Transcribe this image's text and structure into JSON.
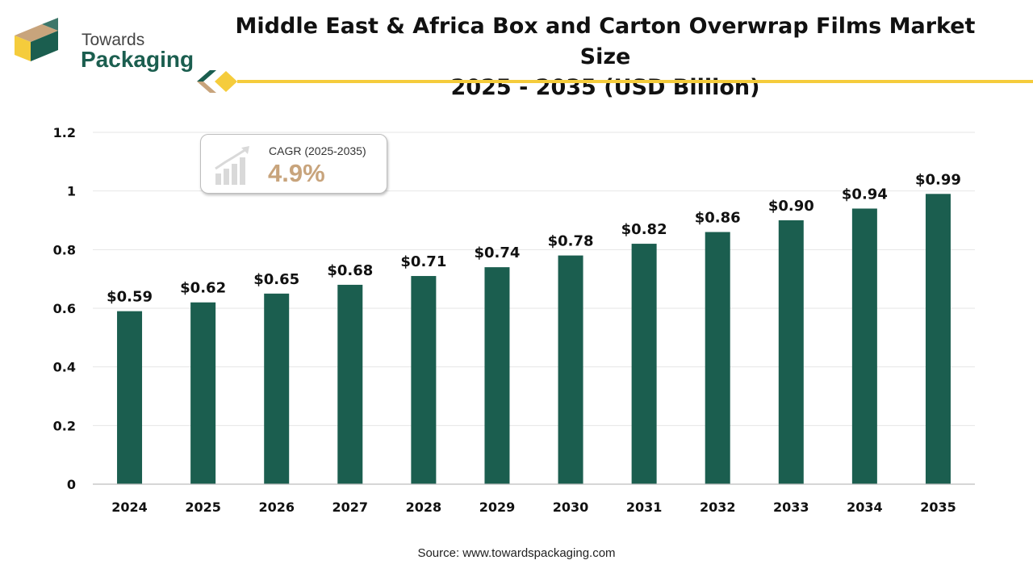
{
  "brand": {
    "name_line1": "Towards",
    "name_line2": "Packaging",
    "dark_color": "#1b5e4f",
    "accent_color": "#f5cc3c",
    "tan_color": "#c8a47c"
  },
  "header": {
    "title_line1": "Middle East & Africa Box and Carton Overwrap Films Market Size",
    "title_line2": "2025 - 2035 (USD Billion)"
  },
  "cagr": {
    "label": "CAGR (2025-2035)",
    "value": "4.9%",
    "icon": "growth-chart-icon"
  },
  "chart_data": {
    "type": "bar",
    "categories": [
      "2024",
      "2025",
      "2026",
      "2027",
      "2028",
      "2029",
      "2030",
      "2031",
      "2032",
      "2033",
      "2034",
      "2035"
    ],
    "values": [
      0.59,
      0.62,
      0.65,
      0.68,
      0.71,
      0.74,
      0.78,
      0.82,
      0.86,
      0.9,
      0.94,
      0.99
    ],
    "value_labels": [
      "$0.59",
      "$0.62",
      "$0.65",
      "$0.68",
      "$0.71",
      "$0.74",
      "$0.78",
      "$0.82",
      "$0.86",
      "$0.90",
      "$0.94",
      "$0.99"
    ],
    "yticks": [
      "0",
      "0.2",
      "0.4",
      "0.6",
      "0.8",
      "1",
      "1.2"
    ],
    "ylim": [
      0,
      1.2
    ],
    "grid": true,
    "bar_color": "#1b5e4f",
    "title": "Middle East & Africa Box and Carton Overwrap Films Market Size 2025 - 2035 (USD Billion)",
    "xlabel": "",
    "ylabel": ""
  },
  "footer": {
    "source": "Source: www.towardspackaging.com"
  }
}
